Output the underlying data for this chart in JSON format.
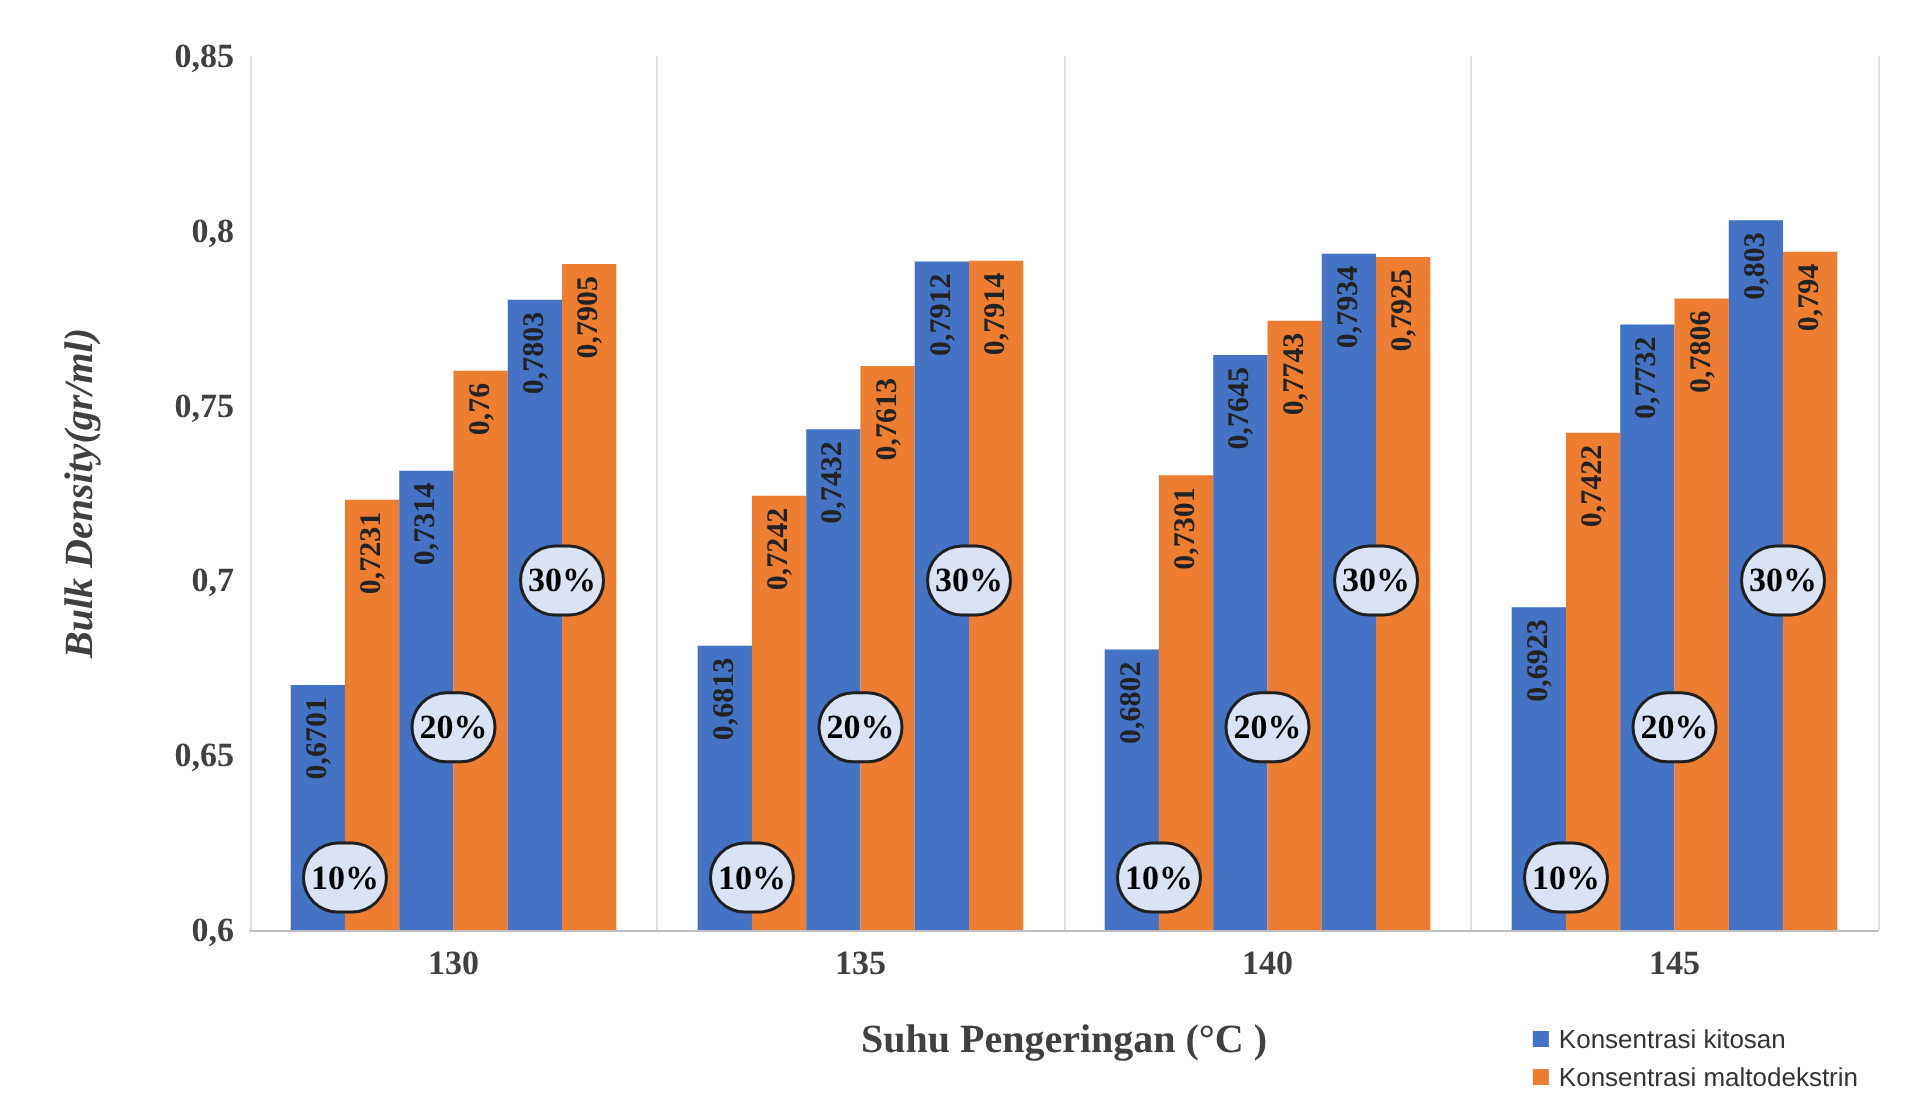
{
  "chart_data": {
    "type": "bar",
    "xlabel": "Suhu Pengeringan (°C )",
    "ylabel": "Bulk Density(gr/ml)",
    "categories": [
      "130",
      "135",
      "140",
      "145"
    ],
    "series": [
      {
        "name": "Konsentrasi kitosan",
        "color": "#4472c4",
        "values": [
          0.6701,
          0.6813,
          0.6802,
          0.6923
        ],
        "value_labels": [
          "0,6701",
          "0,6813",
          "0,6802",
          "0,6923"
        ]
      },
      {
        "name": "Konsentrasi maltodekstrin",
        "color": "#ed7d31",
        "values": [
          0.7231,
          0.7242,
          0.7301,
          0.7422
        ],
        "value_labels": [
          "0,7231",
          "0,7242",
          "0,7301",
          "0,7422"
        ]
      },
      {
        "color": "#4472c4",
        "values": [
          0.7314,
          0.7432,
          0.7645,
          0.7732
        ],
        "value_labels": [
          "0,7314",
          "0,7432",
          "0,7645",
          "0,7732"
        ]
      },
      {
        "color": "#ed7d31",
        "values": [
          0.76,
          0.7613,
          0.7743,
          0.7806
        ],
        "value_labels": [
          "0,76",
          "0,7613",
          "0,7743",
          "0,7806"
        ]
      },
      {
        "color": "#4472c4",
        "values": [
          0.7803,
          0.7912,
          0.7934,
          0.803
        ],
        "value_labels": [
          "0,7803",
          "0,7912",
          "0,7934",
          "0,803"
        ]
      },
      {
        "color": "#ed7d31",
        "values": [
          0.7905,
          0.7914,
          0.7925,
          0.794
        ],
        "value_labels": [
          "0,7905",
          "0,7914",
          "0,7925",
          "0,794"
        ]
      }
    ],
    "ylim": [
      0.6,
      0.85
    ],
    "yticks": [
      {
        "value": 0.6,
        "label": "0,6"
      },
      {
        "value": 0.65,
        "label": "0,65"
      },
      {
        "value": 0.7,
        "label": "0,7"
      },
      {
        "value": 0.75,
        "label": "0,75"
      },
      {
        "value": 0.8,
        "label": "0,8"
      },
      {
        "value": 0.85,
        "label": "0,85"
      }
    ],
    "grid": "x",
    "legend": "bottom right",
    "annotations": [
      {
        "text": "10%",
        "x": "130",
        "y": 0.615
      },
      {
        "text": "20%",
        "x": "130",
        "y": 0.658
      },
      {
        "text": "30%",
        "x": "130",
        "y": 0.7
      },
      {
        "text": "10%",
        "x": "135",
        "y": 0.615
      },
      {
        "text": "20%",
        "x": "135",
        "y": 0.658
      },
      {
        "text": "30%",
        "x": "135",
        "y": 0.7
      },
      {
        "text": "10%",
        "x": "140",
        "y": 0.615
      },
      {
        "text": "20%",
        "x": "140",
        "y": 0.658
      },
      {
        "text": "30%",
        "x": "140",
        "y": 0.7
      },
      {
        "text": "10%",
        "x": "145",
        "y": 0.615
      },
      {
        "text": "20%",
        "x": "145",
        "y": 0.658
      },
      {
        "text": "30%",
        "x": "145",
        "y": 0.7
      }
    ]
  }
}
